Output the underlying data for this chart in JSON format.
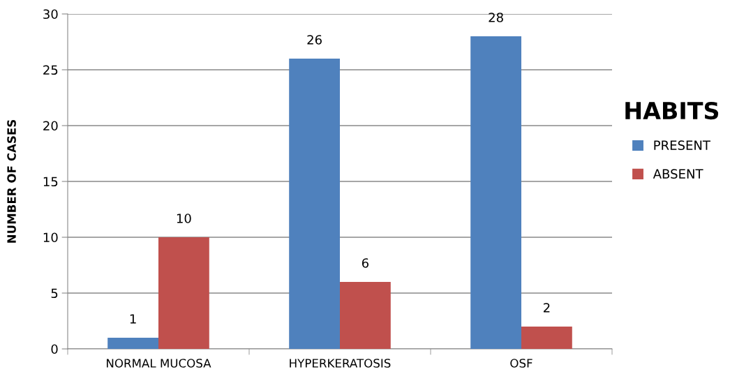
{
  "chart_data": {
    "type": "bar",
    "ylabel": "NUMBER OF CASES",
    "legend_title": "HABITS",
    "categories": [
      "NORMAL MUCOSA",
      "HYPERKERATOSIS",
      "OSF"
    ],
    "series": [
      {
        "name": "PRESENT",
        "color": "#4f81bd",
        "values": [
          1,
          26,
          28
        ]
      },
      {
        "name": "ABSENT",
        "color": "#c0504d",
        "values": [
          10,
          6,
          2
        ]
      }
    ],
    "ylim": [
      0,
      30
    ],
    "yticks": [
      0,
      5,
      10,
      15,
      20,
      25,
      30
    ],
    "grid": "y",
    "legend": "right",
    "data_labels": true
  }
}
